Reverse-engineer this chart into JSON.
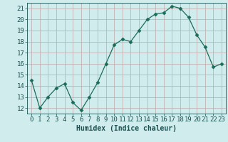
{
  "x": [
    0,
    1,
    2,
    3,
    4,
    5,
    6,
    7,
    8,
    9,
    10,
    11,
    12,
    13,
    14,
    15,
    16,
    17,
    18,
    19,
    20,
    21,
    22,
    23
  ],
  "y": [
    14.5,
    12.0,
    13.0,
    13.8,
    14.2,
    12.5,
    11.8,
    13.0,
    14.3,
    16.0,
    17.7,
    18.2,
    18.0,
    19.0,
    20.0,
    20.5,
    20.6,
    21.2,
    21.0,
    20.2,
    18.6,
    17.5,
    15.7,
    16.0
  ],
  "xlabel": "Humidex (Indice chaleur)",
  "xlim": [
    -0.5,
    23.5
  ],
  "ylim": [
    11.5,
    21.5
  ],
  "yticks": [
    12,
    13,
    14,
    15,
    16,
    17,
    18,
    19,
    20,
    21
  ],
  "xticks": [
    0,
    1,
    2,
    3,
    4,
    5,
    6,
    7,
    8,
    9,
    10,
    11,
    12,
    13,
    14,
    15,
    16,
    17,
    18,
    19,
    20,
    21,
    22,
    23
  ],
  "line_color": "#1a6b5a",
  "marker": "D",
  "marker_size": 2.5,
  "bg_color": "#d0ecec",
  "grid_color": "#c0a8a8",
  "tick_label_color": "#1a5050",
  "xlabel_color": "#1a5050",
  "xlabel_fontsize": 7,
  "tick_fontsize": 6.5
}
